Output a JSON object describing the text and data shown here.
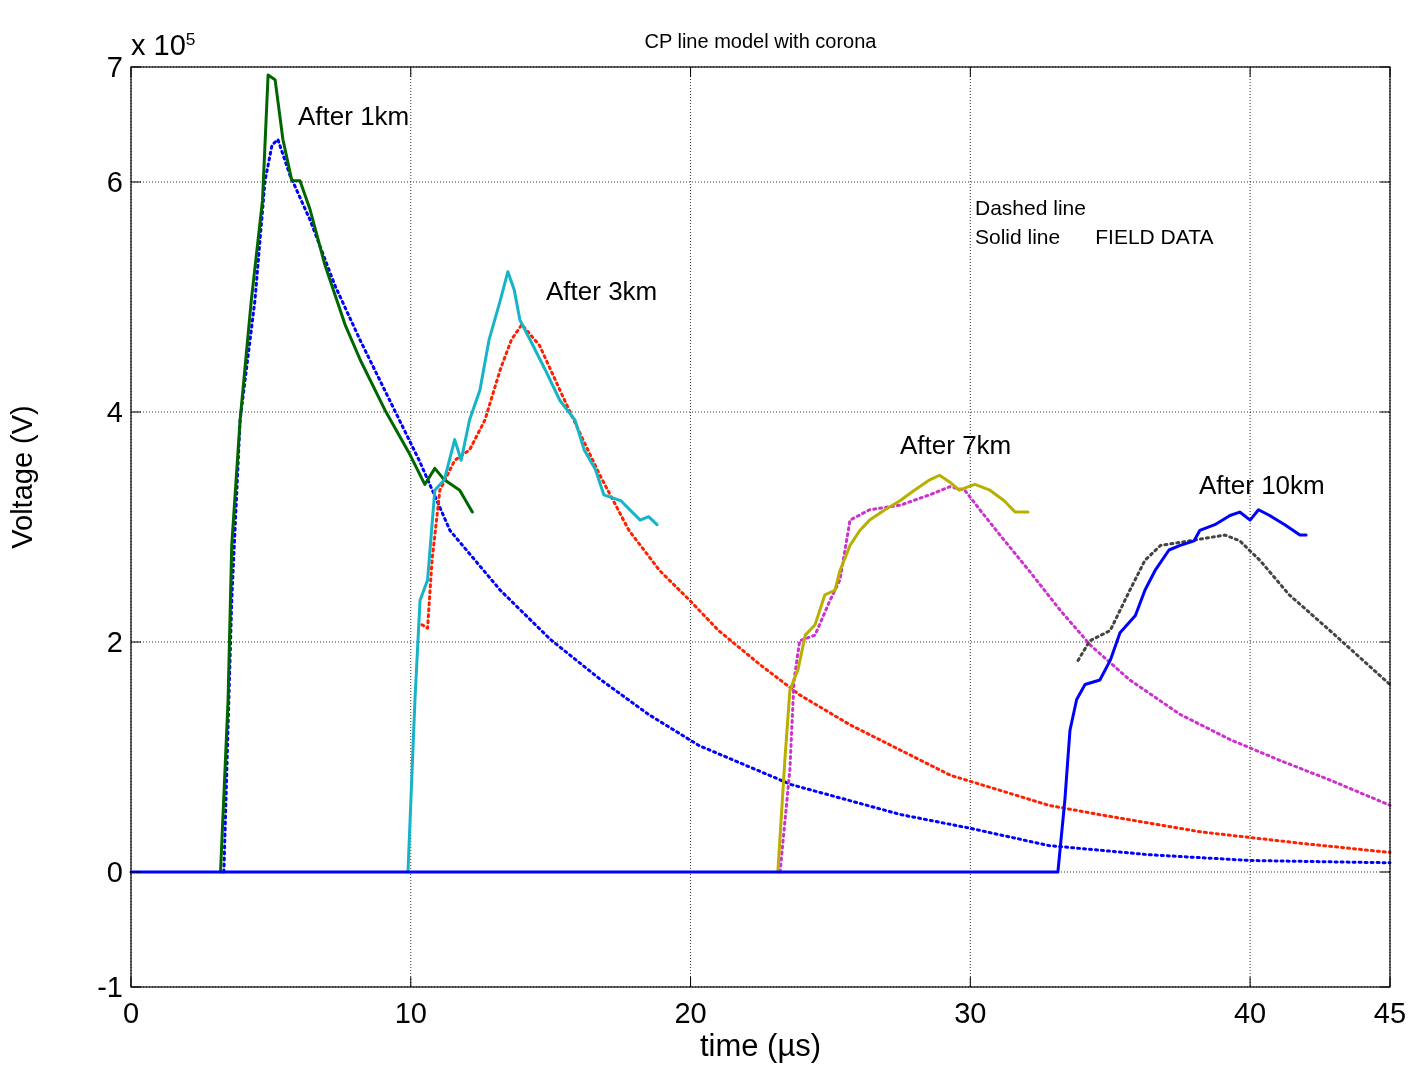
{
  "chart_data": {
    "type": "line",
    "title": "CP line model with corona",
    "xlabel": "time (µs)",
    "ylabel": "Voltage (V)",
    "xlim": [
      0,
      45
    ],
    "ylim": [
      -1,
      7
    ],
    "xticks": [
      0,
      10,
      20,
      30,
      40,
      45
    ],
    "yticks": [
      -1,
      0,
      2,
      4,
      6,
      7
    ],
    "grid": true,
    "annotations": [
      "x 10$^{5}$",
      "Dashed line",
      "Solid line      FIELD DATA",
      "After 1km",
      "After 3km",
      "After 7km",
      "After 10km"
    ],
    "series": [
      {
        "color": "#0000ff",
        "line_style": "dotted",
        "x": [
          3.32,
          3.6,
          3.9,
          4.43,
          4.79,
          5.04,
          5.25,
          5.68,
          6.4,
          7.29,
          8.18,
          9.25,
          10.3,
          11.4,
          13.2,
          15.0,
          16.8,
          18.5,
          20.3,
          23.6,
          27.5,
          30,
          32.8,
          36.4,
          40,
          45
        ],
        "values": [
          0,
          2.36,
          3.93,
          4.97,
          6.01,
          6.32,
          6.37,
          6.06,
          5.67,
          5.1,
          4.63,
          4.1,
          3.58,
          2.97,
          2.45,
          2.02,
          1.67,
          1.37,
          1.1,
          0.76,
          0.5,
          0.38,
          0.23,
          0.15,
          0.1,
          0.08
        ]
      },
      {
        "color": "#ff2000",
        "line_style": "dotted",
        "x": [
          10.4,
          10.6,
          10.76,
          11.04,
          11.57,
          12.1,
          12.65,
          13.2,
          13.6,
          13.97,
          14.6,
          15.33,
          16.0,
          16.76,
          17.8,
          18.9,
          19.98,
          21.0,
          22.5,
          23.9,
          25.7,
          27.5,
          29.3,
          31.06,
          32.8,
          34.6,
          38.2,
          41.8,
          45
        ],
        "values": [
          2.15,
          2.12,
          2.71,
          3.32,
          3.58,
          3.67,
          3.93,
          4.37,
          4.63,
          4.76,
          4.58,
          4.19,
          3.84,
          3.45,
          2.97,
          2.62,
          2.36,
          2.1,
          1.8,
          1.54,
          1.28,
          1.06,
          0.84,
          0.71,
          0.58,
          0.5,
          0.35,
          0.25,
          0.17
        ]
      },
      {
        "color": "#cc33cc",
        "line_style": "dotted",
        "x": [
          23.2,
          23.55,
          23.7,
          23.9,
          24.45,
          24.98,
          25.34,
          25.7,
          26.4,
          27.5,
          28.55,
          29.27,
          29.8,
          30.34,
          31.06,
          32.1,
          33.2,
          34.3,
          35.7,
          37.5,
          39.3,
          41.07,
          42.85,
          45
        ],
        "values": [
          0,
          0.89,
          1.67,
          2.01,
          2.06,
          2.36,
          2.54,
          3.06,
          3.15,
          3.19,
          3.28,
          3.35,
          3.32,
          3.15,
          2.93,
          2.62,
          2.28,
          1.97,
          1.67,
          1.37,
          1.15,
          0.97,
          0.8,
          0.58
        ]
      },
      {
        "color": "#444444",
        "line_style": "dotted",
        "x": [
          33.85,
          34.27,
          35.0,
          35.7,
          36.24,
          36.8,
          37.85,
          39.1,
          39.63,
          40.35,
          41.4,
          42.85,
          45
        ],
        "values": [
          1.84,
          2.01,
          2.1,
          2.45,
          2.71,
          2.84,
          2.88,
          2.93,
          2.88,
          2.71,
          2.41,
          2.1,
          1.63
        ]
      },
      {
        "color": "#006600",
        "line_style": "solid",
        "x": [
          3.2,
          3.47,
          3.6,
          3.9,
          4.3,
          4.7,
          4.9,
          5.15,
          5.43,
          5.75,
          6.04,
          6.4,
          6.93,
          7.65,
          8.2,
          9.07,
          9.97,
          10.5,
          10.86,
          11.2,
          11.75,
          12.2
        ],
        "values": [
          0,
          1.5,
          2.84,
          3.93,
          4.97,
          5.84,
          6.93,
          6.89,
          6.37,
          6.01,
          6.01,
          5.76,
          5.28,
          4.76,
          4.45,
          4.02,
          3.63,
          3.37,
          3.51,
          3.41,
          3.32,
          3.13
        ]
      },
      {
        "color": "#17b4c8",
        "line_style": "solid",
        "x": [
          9.9,
          10.15,
          10.33,
          10.6,
          10.86,
          11.2,
          11.57,
          11.8,
          12.1,
          12.47,
          12.8,
          13.2,
          13.47,
          13.7,
          13.9,
          14.26,
          14.8,
          15.33,
          15.87,
          16.2,
          16.6,
          16.9,
          17.5,
          18.2,
          18.5,
          18.8
        ],
        "values": [
          0,
          1.5,
          2.36,
          2.54,
          3.32,
          3.41,
          3.76,
          3.58,
          3.93,
          4.19,
          4.63,
          4.97,
          5.22,
          5.06,
          4.8,
          4.63,
          4.37,
          4.1,
          3.93,
          3.67,
          3.5,
          3.28,
          3.23,
          3.06,
          3.09,
          3.02
        ]
      },
      {
        "color": "#b8b000",
        "line_style": "solid",
        "x": [
          23.12,
          23.37,
          23.55,
          23.84,
          24.1,
          24.45,
          24.8,
          25.16,
          25.34,
          25.7,
          26.05,
          26.4,
          26.95,
          27.5,
          28.0,
          28.55,
          28.9,
          29.27,
          29.6,
          30.16,
          30.7,
          31.2,
          31.6,
          32.06
        ],
        "values": [
          0,
          0.97,
          1.58,
          1.76,
          2.06,
          2.15,
          2.41,
          2.45,
          2.62,
          2.84,
          2.97,
          3.06,
          3.15,
          3.23,
          3.32,
          3.41,
          3.45,
          3.39,
          3.32,
          3.37,
          3.32,
          3.23,
          3.13,
          3.13
        ]
      },
      {
        "color": "#0000ff",
        "line_style": "solid",
        "x": [
          0,
          33.13,
          33.38,
          33.56,
          33.8,
          34.1,
          34.63,
          35.0,
          35.35,
          35.9,
          36.24,
          36.6,
          37.1,
          37.5,
          38.0,
          38.2,
          38.74,
          39.28,
          39.63,
          40.0,
          40.3,
          40.7,
          41.24,
          41.78,
          42.0
        ],
        "values": [
          0,
          0,
          0.63,
          1.23,
          1.5,
          1.63,
          1.67,
          1.84,
          2.08,
          2.23,
          2.45,
          2.62,
          2.8,
          2.84,
          2.88,
          2.97,
          3.02,
          3.1,
          3.13,
          3.06,
          3.15,
          3.1,
          3.02,
          2.93,
          2.93
        ]
      }
    ]
  }
}
